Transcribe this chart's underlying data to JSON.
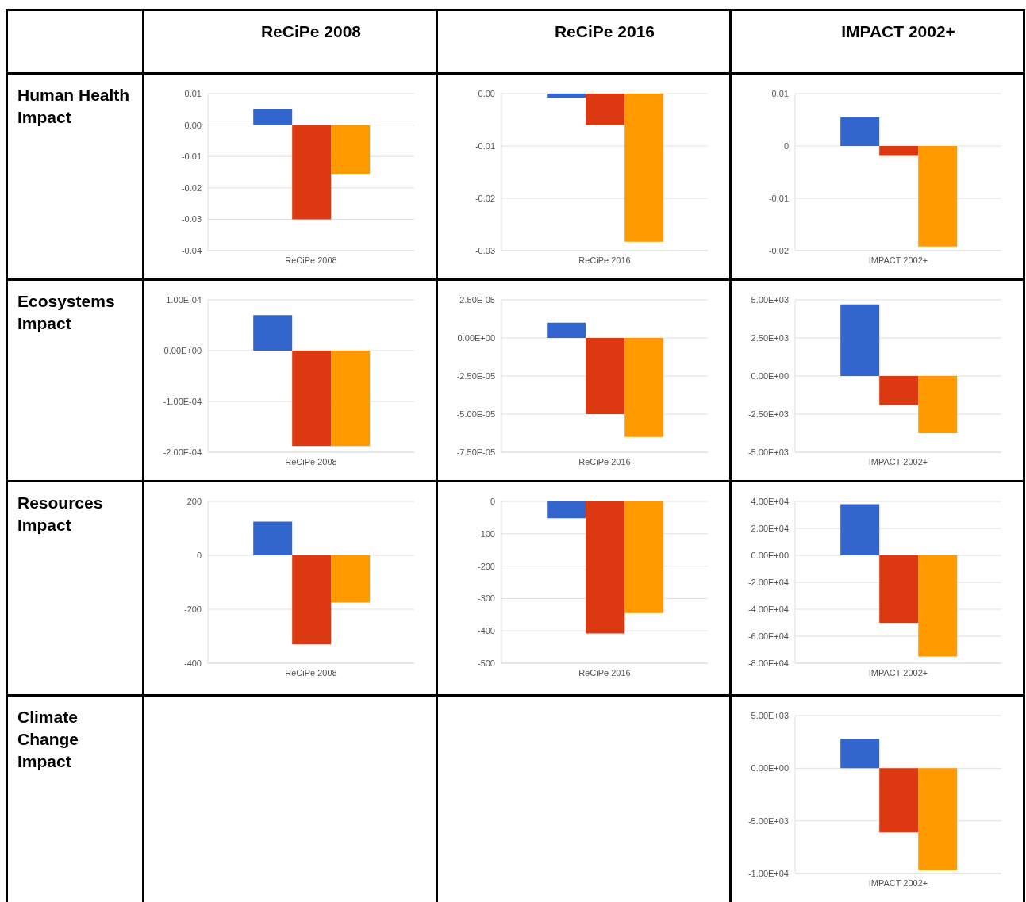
{
  "chart_data": [
    {
      "type": "bar",
      "title": "ReCiPe 2008",
      "annotations": [
        "Human Health Impact"
      ],
      "categories": [
        "ReCiPe 2008"
      ],
      "series": [
        {
          "color": "#3366cc",
          "values": [
            0.005
          ]
        },
        {
          "color": "#dc3912",
          "values": [
            -0.03
          ]
        },
        {
          "color": "#ff9900",
          "values": [
            -0.0155
          ]
        }
      ],
      "ylim": [
        -0.04,
        0.01
      ],
      "yticks": [
        -0.04,
        -0.03,
        -0.02,
        -0.01,
        {
          "value": 0,
          "label": "0.00"
        },
        0.01
      ],
      "grid": "y"
    },
    {
      "type": "bar",
      "title": "ReCiPe 2016",
      "categories": [
        "ReCiPe 2016"
      ],
      "series": [
        {
          "color": "#3366cc",
          "values": [
            -0.0008
          ]
        },
        {
          "color": "#dc3912",
          "values": [
            -0.006
          ]
        },
        {
          "color": "#ff9900",
          "values": [
            -0.0283
          ]
        }
      ],
      "ylim": [
        -0.03,
        0
      ],
      "yticks": [
        -0.03,
        -0.02,
        -0.01,
        {
          "value": 0,
          "label": "0.00"
        }
      ],
      "grid": "y"
    },
    {
      "type": "bar",
      "title": "IMPACT 2002+",
      "categories": [
        "IMPACT 2002+"
      ],
      "series": [
        {
          "color": "#3366cc",
          "values": [
            0.0055
          ]
        },
        {
          "color": "#dc3912",
          "values": [
            -0.0019
          ]
        },
        {
          "color": "#ff9900",
          "values": [
            -0.0192
          ]
        }
      ],
      "ylim": [
        -0.02,
        0.01
      ],
      "yticks": [
        -0.02,
        -0.01,
        0,
        0.01
      ],
      "grid": "y"
    },
    {
      "type": "bar",
      "annotations": [
        "Ecosystems Impact"
      ],
      "categories": [
        "ReCiPe 2008"
      ],
      "series": [
        {
          "color": "#3366cc",
          "values": [
            7e-05
          ]
        },
        {
          "color": "#dc3912",
          "values": [
            -0.000188
          ]
        },
        {
          "color": "#ff9900",
          "values": [
            -0.000188
          ]
        }
      ],
      "ylim": [
        -0.0002,
        0.0001
      ],
      "yticks": [
        {
          "value": -0.0002,
          "label": "-2.00E-04"
        },
        {
          "value": -0.0001,
          "label": "-1.00E-04"
        },
        {
          "value": 0,
          "label": "0.00E+00"
        },
        {
          "value": 0.0001,
          "label": "1.00E-04"
        }
      ],
      "grid": "y"
    },
    {
      "type": "bar",
      "categories": [
        "ReCiPe 2016"
      ],
      "series": [
        {
          "color": "#3366cc",
          "values": [
            1e-05
          ]
        },
        {
          "color": "#dc3912",
          "values": [
            -5e-05
          ]
        },
        {
          "color": "#ff9900",
          "values": [
            -6.5e-05
          ]
        }
      ],
      "ylim": [
        -7.5e-05,
        2.5e-05
      ],
      "yticks": [
        {
          "value": -7.5e-05,
          "label": "-7.50E-05"
        },
        {
          "value": -5e-05,
          "label": "-5.00E-05"
        },
        {
          "value": -2.5e-05,
          "label": "-2.50E-05"
        },
        {
          "value": 0,
          "label": "0.00E+00"
        },
        {
          "value": 2.5e-05,
          "label": "2.50E-05"
        }
      ],
      "grid": "y"
    },
    {
      "type": "bar",
      "categories": [
        "IMPACT 2002+"
      ],
      "series": [
        {
          "color": "#3366cc",
          "values": [
            4700
          ]
        },
        {
          "color": "#dc3912",
          "values": [
            -1900
          ]
        },
        {
          "color": "#ff9900",
          "values": [
            -3750
          ]
        }
      ],
      "ylim": [
        -5000,
        5000
      ],
      "yticks": [
        {
          "value": -5000,
          "label": "-5.00E+03"
        },
        {
          "value": -2500,
          "label": "-2.50E+03"
        },
        {
          "value": 0,
          "label": "0.00E+00"
        },
        {
          "value": 2500,
          "label": "2.50E+03"
        },
        {
          "value": 5000,
          "label": "5.00E+03"
        }
      ],
      "grid": "y"
    },
    {
      "type": "bar",
      "annotations": [
        "Resources Impact"
      ],
      "categories": [
        "ReCiPe 2008"
      ],
      "series": [
        {
          "color": "#3366cc",
          "values": [
            125
          ]
        },
        {
          "color": "#dc3912",
          "values": [
            -330
          ]
        },
        {
          "color": "#ff9900",
          "values": [
            -175
          ]
        }
      ],
      "ylim": [
        -400,
        200
      ],
      "yticks": [
        -400,
        -200,
        0,
        200
      ],
      "grid": "y"
    },
    {
      "type": "bar",
      "categories": [
        "ReCiPe 2016"
      ],
      "series": [
        {
          "color": "#3366cc",
          "values": [
            -52
          ]
        },
        {
          "color": "#dc3912",
          "values": [
            -408
          ]
        },
        {
          "color": "#ff9900",
          "values": [
            -345
          ]
        }
      ],
      "ylim": [
        -500,
        0
      ],
      "yticks": [
        -500,
        -400,
        -300,
        -200,
        -100,
        0
      ],
      "grid": "y"
    },
    {
      "type": "bar",
      "categories": [
        "IMPACT 2002+"
      ],
      "series": [
        {
          "color": "#3366cc",
          "values": [
            38000
          ]
        },
        {
          "color": "#dc3912",
          "values": [
            -50000
          ]
        },
        {
          "color": "#ff9900",
          "values": [
            -75000
          ]
        }
      ],
      "ylim": [
        -80000,
        40000
      ],
      "yticks": [
        {
          "value": -80000,
          "label": "-8.00E+04"
        },
        {
          "value": -60000,
          "label": "-6.00E+04"
        },
        {
          "value": -40000,
          "label": "-4.00E+04"
        },
        {
          "value": -20000,
          "label": "-2.00E+04"
        },
        {
          "value": 0,
          "label": "0.00E+00"
        },
        {
          "value": 20000,
          "label": "2.00E+04"
        },
        {
          "value": 40000,
          "label": "4.00E+04"
        }
      ],
      "grid": "y"
    },
    {
      "type": "bar",
      "annotations": [
        "Climate Change Impact"
      ],
      "categories": [
        "IMPACT 2002+"
      ],
      "series": [
        {
          "color": "#3366cc",
          "values": [
            2800
          ]
        },
        {
          "color": "#dc3912",
          "values": [
            -6100
          ]
        },
        {
          "color": "#ff9900",
          "values": [
            -9700
          ]
        }
      ],
      "ylim": [
        -10000,
        5000
      ],
      "yticks": [
        {
          "value": -10000,
          "label": "-1.00E+04"
        },
        {
          "value": -5000,
          "label": "-5.00E+03"
        },
        {
          "value": 0,
          "label": "0.00E+00"
        },
        {
          "value": 5000,
          "label": "5.00E+03"
        }
      ],
      "grid": "y"
    }
  ]
}
